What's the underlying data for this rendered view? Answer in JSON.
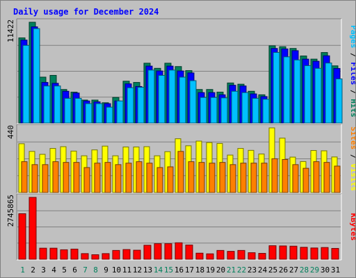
{
  "chart_data": {
    "type": "bar",
    "title": "Daily usage for December 2024",
    "categories": [
      "1",
      "2",
      "3",
      "4",
      "5",
      "6",
      "7",
      "8",
      "9",
      "10",
      "11",
      "12",
      "13",
      "14",
      "15",
      "16",
      "17",
      "18",
      "19",
      "20",
      "21",
      "22",
      "23",
      "24",
      "25",
      "26",
      "27",
      "28",
      "29",
      "30",
      "31"
    ],
    "weekend_days": [
      1,
      7,
      8,
      14,
      15,
      21,
      22,
      28,
      29
    ],
    "panels": [
      {
        "ymax_label": "11422",
        "ymax": 11422,
        "series": [
          {
            "name": "Hits",
            "color": "#00805c",
            "values": [
              9650,
              11422,
              5200,
              5400,
              3800,
              3500,
              2600,
              2600,
              2300,
              2900,
              4740,
              4600,
              6780,
              6200,
              6780,
              6400,
              5940,
              3800,
              3800,
              3500,
              4540,
              4400,
              3600,
              3200,
              8750,
              8650,
              8450,
              7600,
              7240,
              7990,
              6480
            ]
          },
          {
            "name": "Files",
            "color": "#0000ff",
            "values": [
              9400,
              10900,
              4600,
              4500,
              3600,
              3400,
              2500,
              2400,
              2200,
              2500,
              4440,
              4140,
              6450,
              5900,
              6450,
              5900,
              5680,
              3450,
              3450,
              3200,
              4280,
              4200,
              3300,
              3000,
              8450,
              8400,
              8200,
              7240,
              7000,
              7620,
              6180
            ]
          },
          {
            "name": "Pages",
            "color": "#00c0ff",
            "values": [
              8800,
              10700,
              4200,
              4200,
              2800,
              2800,
              2200,
              2200,
              1800,
              2500,
              4000,
              4050,
              6000,
              5400,
              6000,
              5200,
              4800,
              2900,
              2900,
              2850,
              3600,
              3450,
              2800,
              2700,
              8000,
              7500,
              7150,
              6500,
              6200,
              6800,
              5000
            ]
          }
        ],
        "legend": [
          "Pages",
          "Files",
          "Hits"
        ]
      },
      {
        "ymax_label": "440",
        "ymax": 440,
        "series": [
          {
            "name": "Visits",
            "color": "#ffff00",
            "values": [
              332,
              280,
              260,
              300,
              312,
              282,
              250,
              290,
              316,
              250,
              310,
              310,
              312,
              250,
              278,
              366,
              318,
              350,
              340,
              334,
              255,
              300,
              287,
              262,
              440,
              370,
              241,
              211,
              286,
              284,
              242
            ]
          },
          {
            "name": "Sites",
            "color": "#ff8000",
            "values": [
              210,
              190,
              190,
              210,
              205,
              205,
              170,
              200,
              205,
              190,
              200,
              210,
              200,
              170,
              175,
              280,
              210,
              205,
              200,
              205,
              190,
              200,
              200,
              200,
              230,
              225,
              190,
              165,
              210,
              205,
              180
            ]
          }
        ],
        "legend": [
          "Sites",
          "Visits"
        ]
      },
      {
        "ymax_label": "2745865",
        "ymax": 2745865,
        "series": [
          {
            "name": "KBytes",
            "color": "#ff0000",
            "values": [
              2020000,
              2745865,
              490000,
              490000,
              420000,
              450000,
              250000,
              200000,
              250000,
              390000,
              430000,
              400000,
              620000,
              690000,
              690000,
              730000,
              630000,
              270000,
              240000,
              390000,
              350000,
              390000,
              290000,
              260000,
              600000,
              590000,
              580000,
              530000,
              500000,
              520000,
              480000
            ]
          }
        ],
        "legend": [
          "KBytes"
        ]
      }
    ]
  }
}
